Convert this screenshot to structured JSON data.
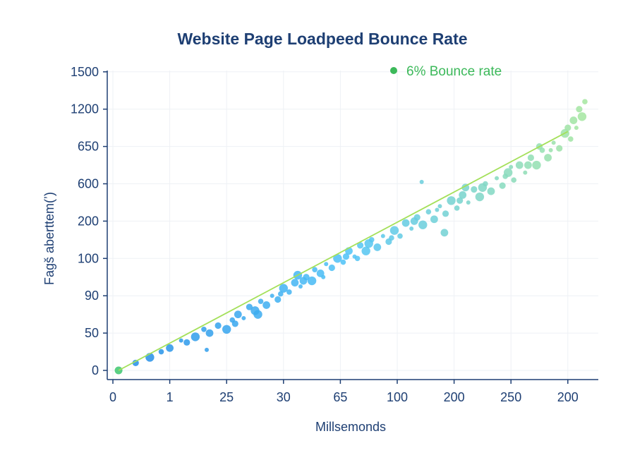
{
  "chart_data": {
    "type": "scatter",
    "title": "Website Page Loadpeed Bounce Rate",
    "xlabel": "Millsemonds",
    "ylabel": "Fagš aberttem(ʼ)",
    "x_tick_labels": [
      "0",
      "1",
      "25",
      "30",
      "65",
      "100",
      "200",
      "250",
      "200"
    ],
    "y_tick_labels": [
      "0",
      "50",
      "90",
      "100",
      "200",
      "600",
      "650",
      "1200",
      "1500"
    ],
    "axis_note": "tick labels are categorical and evenly spaced; point values given in tick-index units",
    "xlim": [
      0,
      8.5
    ],
    "ylim": [
      0,
      8
    ],
    "grid": true,
    "legend": {
      "label": "6% Bounce rate",
      "position": "top-right",
      "color": "#3cb95a"
    },
    "colors": {
      "start": "#1e88e5",
      "mid": "#4fc3f7",
      "end": "#a5e6a0",
      "trend": "#a4e05a",
      "axis": "#1e3f73"
    },
    "trend_line": [
      [
        0.1,
        0
      ],
      [
        8.0,
        6.4
      ]
    ],
    "points": [
      [
        0.1,
        0
      ],
      [
        0.4,
        0.2
      ],
      [
        0.65,
        0.35
      ],
      [
        0.85,
        0.5
      ],
      [
        1.0,
        0.6
      ],
      [
        1.2,
        0.8
      ],
      [
        1.3,
        0.75
      ],
      [
        1.45,
        0.9
      ],
      [
        1.6,
        1.1
      ],
      [
        1.7,
        1.0
      ],
      [
        1.65,
        0.55
      ],
      [
        1.85,
        1.2
      ],
      [
        2.0,
        1.1
      ],
      [
        2.1,
        1.35
      ],
      [
        2.2,
        1.5
      ],
      [
        2.3,
        1.4
      ],
      [
        2.4,
        1.7
      ],
      [
        2.5,
        1.6
      ],
      [
        2.6,
        1.85
      ],
      [
        2.7,
        1.75
      ],
      [
        2.8,
        2.0
      ],
      [
        2.9,
        1.9
      ],
      [
        3.0,
        2.2
      ],
      [
        3.1,
        2.1
      ],
      [
        3.2,
        2.35
      ],
      [
        3.3,
        2.25
      ],
      [
        3.4,
        2.5
      ],
      [
        3.5,
        2.4
      ],
      [
        3.55,
        2.7
      ],
      [
        3.65,
        2.6
      ],
      [
        3.75,
        2.85
      ],
      [
        3.85,
        2.75
      ],
      [
        3.95,
        3.0
      ],
      [
        4.05,
        2.9
      ],
      [
        4.15,
        3.2
      ],
      [
        4.25,
        3.05
      ],
      [
        4.35,
        3.35
      ],
      [
        4.45,
        3.2
      ],
      [
        4.55,
        3.5
      ],
      [
        4.65,
        3.3
      ],
      [
        4.75,
        3.6
      ],
      [
        4.85,
        3.45
      ],
      [
        4.95,
        3.75
      ],
      [
        5.05,
        3.6
      ],
      [
        5.15,
        3.95
      ],
      [
        5.25,
        3.8
      ],
      [
        5.35,
        4.1
      ],
      [
        5.45,
        3.9
      ],
      [
        5.55,
        4.25
      ],
      [
        5.65,
        4.05
      ],
      [
        5.75,
        4.4
      ],
      [
        5.85,
        4.2
      ],
      [
        5.95,
        4.55
      ],
      [
        6.05,
        4.35
      ],
      [
        6.15,
        4.7
      ],
      [
        6.25,
        4.5
      ],
      [
        6.35,
        4.85
      ],
      [
        6.45,
        4.65
      ],
      [
        6.55,
        5.0
      ],
      [
        6.65,
        4.8
      ],
      [
        6.75,
        5.15
      ],
      [
        6.85,
        4.95
      ],
      [
        6.95,
        5.3
      ],
      [
        7.05,
        5.1
      ],
      [
        7.15,
        5.5
      ],
      [
        7.25,
        5.3
      ],
      [
        7.35,
        5.7
      ],
      [
        7.45,
        5.5
      ],
      [
        7.55,
        5.9
      ],
      [
        7.65,
        5.7
      ],
      [
        7.75,
        6.1
      ],
      [
        7.85,
        5.95
      ],
      [
        7.95,
        6.35
      ],
      [
        8.05,
        6.2
      ],
      [
        8.1,
        6.7
      ],
      [
        8.15,
        6.5
      ],
      [
        8.2,
        7.0
      ],
      [
        8.25,
        6.8
      ],
      [
        8.3,
        7.2
      ],
      [
        5.83,
        3.69
      ],
      [
        5.43,
        5.05
      ],
      [
        2.15,
        1.25
      ],
      [
        2.55,
        1.5
      ],
      [
        2.95,
        2.05
      ],
      [
        3.35,
        2.4
      ],
      [
        3.7,
        2.5
      ],
      [
        4.1,
        3.05
      ],
      [
        4.5,
        3.4
      ],
      [
        4.9,
        3.55
      ],
      [
        5.3,
        4.0
      ],
      [
        5.7,
        4.3
      ],
      [
        6.1,
        4.55
      ],
      [
        6.5,
        4.9
      ],
      [
        6.9,
        5.2
      ],
      [
        7.3,
        5.5
      ],
      [
        7.7,
        5.9
      ],
      [
        8.0,
        6.5
      ],
      [
        3.25,
        2.55
      ],
      [
        4.3,
        3.0
      ],
      [
        6.2,
        4.9
      ],
      [
        7.0,
        5.45
      ],
      [
        7.5,
        6.0
      ]
    ]
  }
}
